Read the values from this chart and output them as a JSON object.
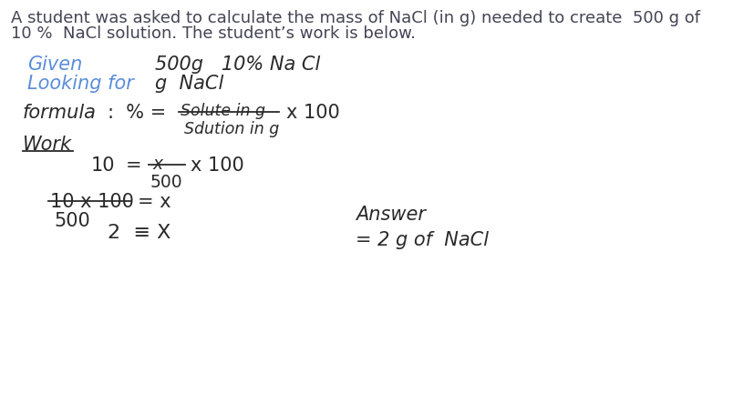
{
  "bg_color": "#ffffff",
  "text_color": "#2a2a2a",
  "blue_color": "#5b8dd9",
  "header_color": "#444455",
  "fig_w": 8.28,
  "fig_h": 4.54,
  "dpi": 100,
  "header_line1": "A student was asked to calculate the mass of NaCl (in g) needed to create  500 g of",
  "header_line2": "10 %  NaCl solution. The student’s work is below.",
  "header_fs": 13.0,
  "hw_fs": 15.0,
  "hw_fs_small": 12.5,
  "given_label": "Given",
  "given_value": "500g   10% Na Cl",
  "looking_label": "Looking for",
  "looking_value": "g  NaCl",
  "formula_left": "formula :  % =",
  "formula_num": "Solute in g",
  "formula_den": "Sdution in g",
  "formula_x100": "x 100",
  "work_label": "Work",
  "work_line1_left": "10",
  "work_line1_eq": "=",
  "work_line1_num": "x",
  "work_line1_den": "500",
  "work_line1_x100": "x 100",
  "step2_num": "10 x 100",
  "step2_den": "500",
  "step2_eq": "= x",
  "answer_label": "Answer",
  "answer_value": "= 2 g of  NaCl",
  "step3_left": "2  ≡ X"
}
